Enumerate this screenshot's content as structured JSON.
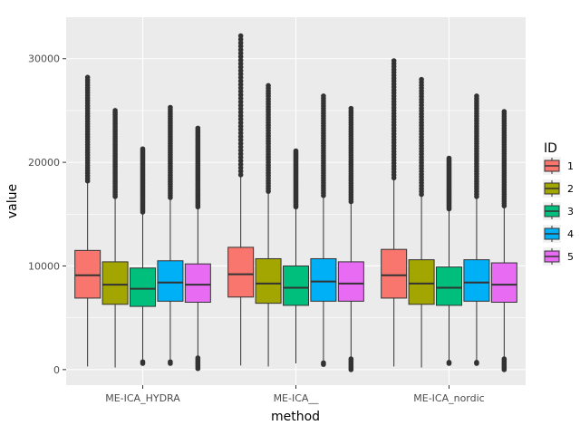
{
  "chart_data": {
    "type": "boxplot",
    "xlabel": "method",
    "ylabel": "value",
    "categories": [
      "ME-ICA_HYDRA",
      "ME-ICA__",
      "ME-ICA_nordic"
    ],
    "yticks": [
      0,
      10000,
      20000,
      30000
    ],
    "ylim": [
      -1500,
      34000
    ],
    "grid": true,
    "legend": {
      "title": "ID",
      "placement": "right"
    },
    "series": [
      {
        "name": "1",
        "color": "#f8766d",
        "boxes": [
          {
            "whisker_low": 300,
            "q1": 6900,
            "median": 9100,
            "q3": 11500,
            "whisker_high": 18200,
            "outlier_low": null,
            "outlier_high": 28200
          },
          {
            "whisker_low": 400,
            "q1": 7000,
            "median": 9200,
            "q3": 11800,
            "whisker_high": 18800,
            "outlier_low": null,
            "outlier_high": 32200
          },
          {
            "whisker_low": 300,
            "q1": 6900,
            "median": 9100,
            "q3": 11600,
            "whisker_high": 18500,
            "outlier_low": null,
            "outlier_high": 29800
          }
        ]
      },
      {
        "name": "2",
        "color": "#a3a500",
        "boxes": [
          {
            "whisker_low": 200,
            "q1": 6300,
            "median": 8200,
            "q3": 10400,
            "whisker_high": 16700,
            "outlier_low": null,
            "outlier_high": 25000
          },
          {
            "whisker_low": 300,
            "q1": 6400,
            "median": 8300,
            "q3": 10700,
            "whisker_high": 17200,
            "outlier_low": null,
            "outlier_high": 27400
          },
          {
            "whisker_low": 200,
            "q1": 6300,
            "median": 8300,
            "q3": 10600,
            "whisker_high": 16900,
            "outlier_low": null,
            "outlier_high": 28000
          }
        ]
      },
      {
        "name": "3",
        "color": "#00bf7d",
        "boxes": [
          {
            "whisker_low": 900,
            "q1": 6100,
            "median": 7800,
            "q3": 9800,
            "whisker_high": 15200,
            "outlier_low": 600,
            "outlier_high": 21300
          },
          {
            "whisker_low": 600,
            "q1": 6200,
            "median": 7900,
            "q3": 10000,
            "whisker_high": 15700,
            "outlier_low": null,
            "outlier_high": 21100
          },
          {
            "whisker_low": 800,
            "q1": 6200,
            "median": 7900,
            "q3": 9900,
            "whisker_high": 15500,
            "outlier_low": 600,
            "outlier_high": 20400
          }
        ]
      },
      {
        "name": "4",
        "color": "#00b0f6",
        "boxes": [
          {
            "whisker_low": 900,
            "q1": 6600,
            "median": 8400,
            "q3": 10500,
            "whisker_high": 16600,
            "outlier_low": 600,
            "outlier_high": 25300
          },
          {
            "whisker_low": 800,
            "q1": 6600,
            "median": 8500,
            "q3": 10700,
            "whisker_high": 16800,
            "outlier_low": 500,
            "outlier_high": 26400
          },
          {
            "whisker_low": 800,
            "q1": 6600,
            "median": 8400,
            "q3": 10600,
            "whisker_high": 16700,
            "outlier_low": 600,
            "outlier_high": 26400
          }
        ]
      },
      {
        "name": "5",
        "color": "#e76bf3",
        "boxes": [
          {
            "whisker_low": 1300,
            "q1": 6500,
            "median": 8200,
            "q3": 10200,
            "whisker_high": 15700,
            "outlier_low": 100,
            "outlier_high": 23300
          },
          {
            "whisker_low": 1200,
            "q1": 6600,
            "median": 8300,
            "q3": 10400,
            "whisker_high": 16200,
            "outlier_low": 0,
            "outlier_high": 25200
          },
          {
            "whisker_low": 1200,
            "q1": 6500,
            "median": 8200,
            "q3": 10300,
            "whisker_high": 15800,
            "outlier_low": 0,
            "outlier_high": 24900
          }
        ]
      }
    ]
  }
}
